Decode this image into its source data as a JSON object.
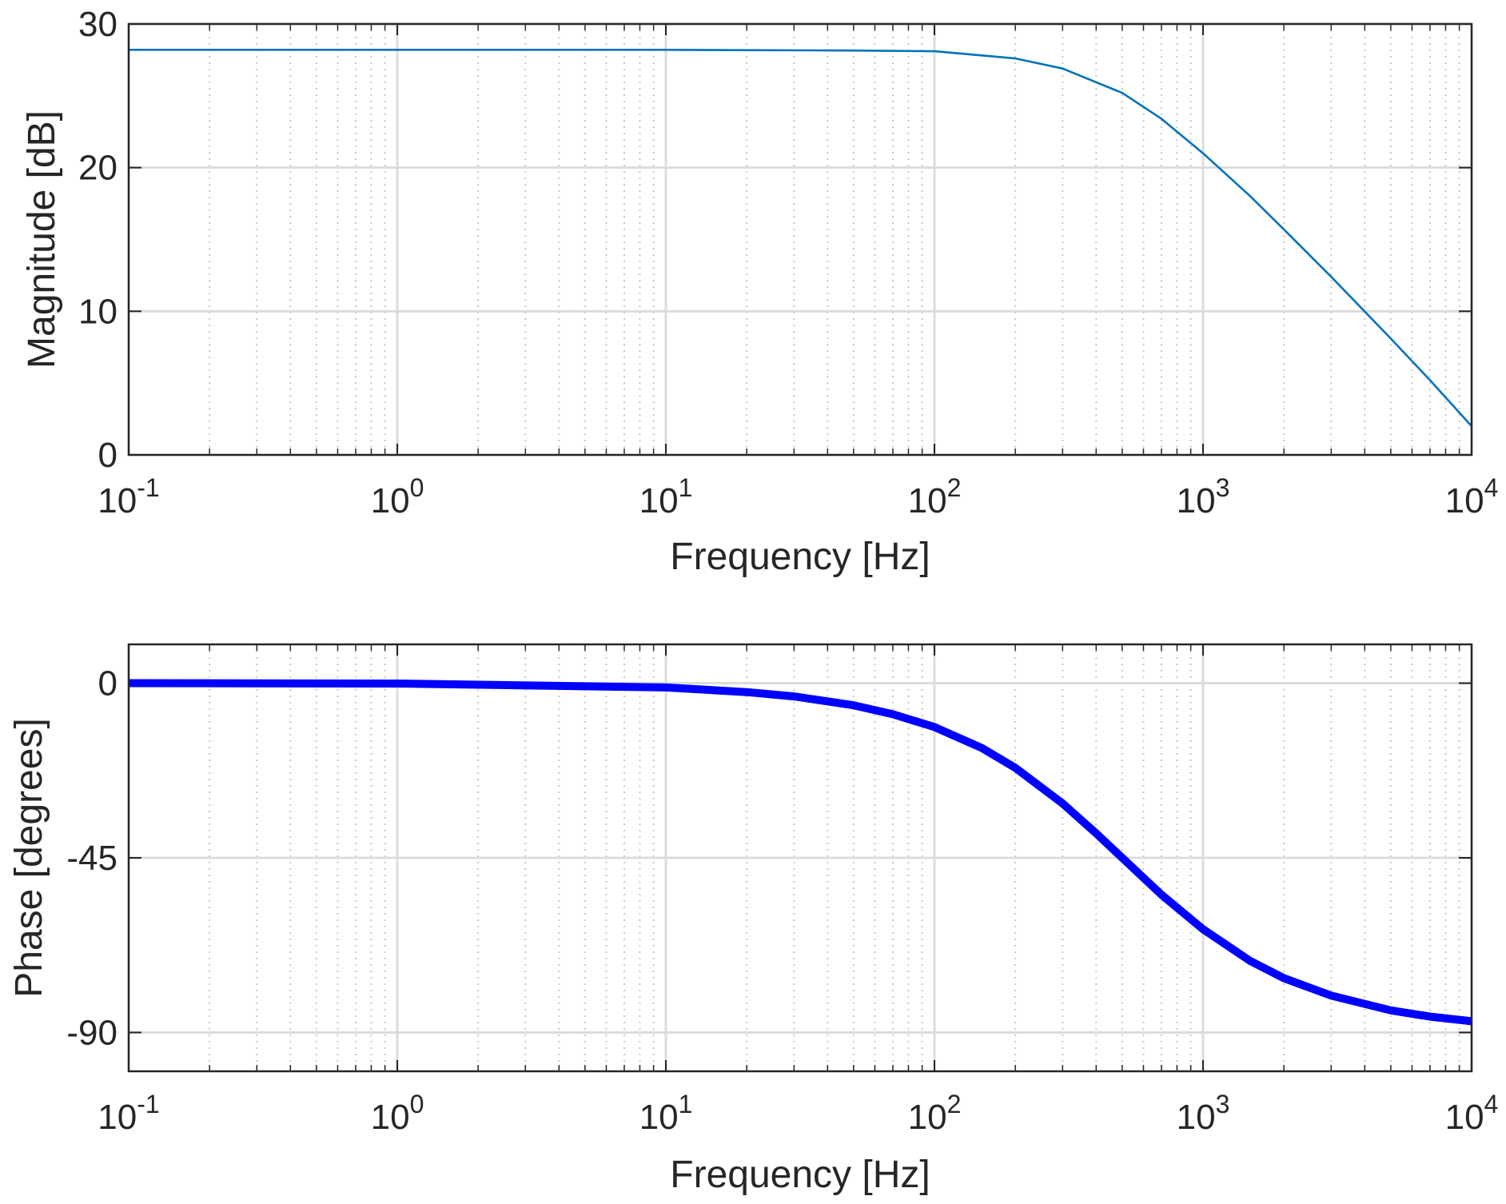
{
  "figure": {
    "type": "bode-plot"
  },
  "colors": {
    "magnitude_line": "#0072BD",
    "phase_line": "#0000FF",
    "axes": "#262626",
    "major_grid": "#DCDCDC",
    "minor_grid": "#C8C8C8",
    "text": "#262626"
  },
  "chart_data": [
    {
      "type": "line",
      "name": "magnitude",
      "title": "",
      "xlabel": "Frequency [Hz]",
      "ylabel": "Magnitude [dB]",
      "xscale": "log",
      "xlim": [
        0.1,
        10000
      ],
      "ylim": [
        0,
        30
      ],
      "grid": true,
      "minor_grid": true,
      "x_ticks": [
        {
          "base": "10",
          "exp": "-1",
          "value": 0.1
        },
        {
          "base": "10",
          "exp": "0",
          "value": 1
        },
        {
          "base": "10",
          "exp": "1",
          "value": 10
        },
        {
          "base": "10",
          "exp": "2",
          "value": 100
        },
        {
          "base": "10",
          "exp": "3",
          "value": 1000
        },
        {
          "base": "10",
          "exp": "4",
          "value": 10000
        }
      ],
      "y_ticks": [
        {
          "label": "0",
          "value": 0
        },
        {
          "label": "10",
          "value": 10
        },
        {
          "label": "20",
          "value": 20
        },
        {
          "label": "30",
          "value": 30
        }
      ],
      "series": [
        {
          "name": "Magnitude",
          "x": [
            0.1,
            1,
            10,
            50,
            100,
            200,
            300,
            500,
            700,
            1000,
            1500,
            2000,
            3000,
            5000,
            7000,
            10000
          ],
          "y": [
            28.2,
            28.2,
            28.2,
            28.15,
            28.1,
            27.6,
            26.9,
            25.2,
            23.4,
            21.0,
            18.0,
            15.7,
            12.4,
            8.1,
            5.2,
            2.0
          ]
        }
      ]
    },
    {
      "type": "line",
      "name": "phase",
      "title": "",
      "xlabel": "Frequency [Hz]",
      "ylabel": "Phase [degrees]",
      "xscale": "log",
      "xlim": [
        0.1,
        10000
      ],
      "ylim": [
        -100,
        10
      ],
      "grid": true,
      "minor_grid": true,
      "x_ticks": [
        {
          "base": "10",
          "exp": "-1",
          "value": 0.1
        },
        {
          "base": "10",
          "exp": "0",
          "value": 1
        },
        {
          "base": "10",
          "exp": "1",
          "value": 10
        },
        {
          "base": "10",
          "exp": "2",
          "value": 100
        },
        {
          "base": "10",
          "exp": "3",
          "value": 1000
        },
        {
          "base": "10",
          "exp": "4",
          "value": 10000
        }
      ],
      "y_ticks": [
        {
          "label": "-90",
          "value": -90
        },
        {
          "label": "-45",
          "value": -45
        },
        {
          "label": "0",
          "value": 0
        }
      ],
      "series": [
        {
          "name": "Phase",
          "x": [
            0.1,
            1,
            10,
            20,
            30,
            50,
            70,
            100,
            150,
            200,
            300,
            400,
            500,
            700,
            1000,
            1500,
            2000,
            3000,
            5000,
            7000,
            10000
          ],
          "y": [
            0,
            -0.1,
            -1.1,
            -2.3,
            -3.4,
            -5.7,
            -8.0,
            -11.3,
            -16.7,
            -21.8,
            -31.0,
            -38.7,
            -45.0,
            -54.5,
            -63.4,
            -71.6,
            -76.0,
            -80.5,
            -84.3,
            -85.9,
            -87.1
          ]
        }
      ]
    }
  ]
}
